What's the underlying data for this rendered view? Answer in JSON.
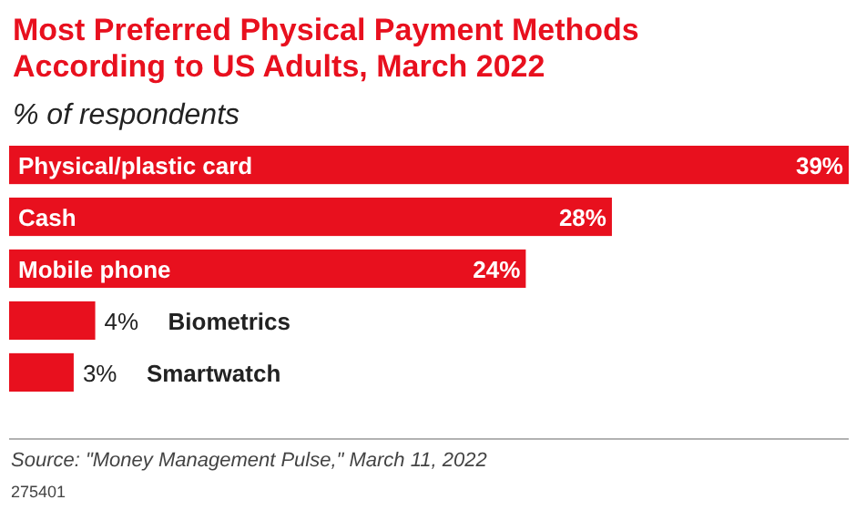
{
  "chart_data": {
    "type": "bar",
    "orientation": "horizontal",
    "title": "Most Preferred Physical Payment Methods According to US Adults, March 2022",
    "subtitle": "% of respondents",
    "categories": [
      "Physical/plastic card",
      "Cash",
      "Mobile phone",
      "Biometrics",
      "Smartwatch"
    ],
    "values": [
      39,
      28,
      24,
      4,
      3
    ],
    "value_labels": [
      "39%",
      "28%",
      "24%",
      "4%",
      "3%"
    ],
    "color": "#e8101e",
    "annotations": [
      "Source: \"Money Management Pulse,\" March 11, 2022",
      "275401"
    ]
  }
}
